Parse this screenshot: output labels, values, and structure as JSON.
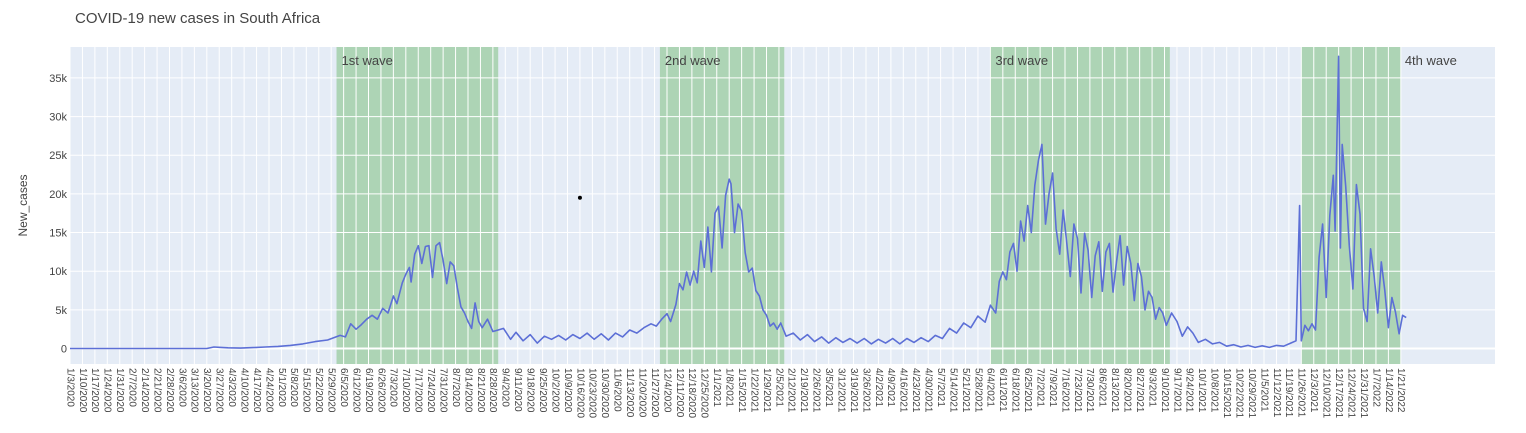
{
  "chart_data": {
    "type": "line",
    "title": "COVID-19 new cases in South Africa",
    "xlabel": "",
    "ylabel": "New_cases",
    "ylim": [
      -2000,
      39000
    ],
    "xlim": [
      "2020-01-03",
      "2022-03-15"
    ],
    "grid": true,
    "y_ticks": [
      {
        "value": 0,
        "label": "0"
      },
      {
        "value": 5000,
        "label": "5k"
      },
      {
        "value": 10000,
        "label": "10k"
      },
      {
        "value": 15000,
        "label": "15k"
      },
      {
        "value": 20000,
        "label": "20k"
      },
      {
        "value": 25000,
        "label": "25k"
      },
      {
        "value": 30000,
        "label": "30k"
      },
      {
        "value": 35000,
        "label": "35k"
      }
    ],
    "x_tick_first": "2020-01-03",
    "x_tick_last": "2022-01-21",
    "x_tick_step_days": 7,
    "x_tick_label_format": "M/D/YYYY",
    "colors": {
      "line": "#5c6fd6",
      "plot_bg": "#e5ecf6",
      "wave_fill": "#7fc17f",
      "grid": "#ffffff"
    },
    "waves": [
      {
        "label": "1st wave",
        "start": "2020-06-01",
        "end": "2020-08-31"
      },
      {
        "label": "2nd wave",
        "start": "2020-11-30",
        "end": "2021-02-08"
      },
      {
        "label": "3rd wave",
        "start": "2021-06-04",
        "end": "2021-09-13"
      },
      {
        "label": "4th wave",
        "start": "2021-11-26",
        "end": "2022-01-21"
      }
    ],
    "annotations": [
      {
        "type": "dot",
        "x": "2020-10-16",
        "y": 19500
      }
    ],
    "series": [
      {
        "points": [
          [
            "2020-01-03",
            0
          ],
          [
            "2020-03-01",
            0
          ],
          [
            "2020-03-20",
            0
          ],
          [
            "2020-03-24",
            200
          ],
          [
            "2020-03-28",
            150
          ],
          [
            "2020-04-01",
            100
          ],
          [
            "2020-04-08",
            60
          ],
          [
            "2020-04-15",
            120
          ],
          [
            "2020-04-22",
            200
          ],
          [
            "2020-04-29",
            280
          ],
          [
            "2020-05-06",
            400
          ],
          [
            "2020-05-13",
            600
          ],
          [
            "2020-05-20",
            900
          ],
          [
            "2020-05-27",
            1100
          ],
          [
            "2020-06-03",
            1700
          ],
          [
            "2020-06-06",
            1500
          ],
          [
            "2020-06-09",
            3200
          ],
          [
            "2020-06-12",
            2500
          ],
          [
            "2020-06-15",
            3100
          ],
          [
            "2020-06-18",
            3800
          ],
          [
            "2020-06-21",
            4300
          ],
          [
            "2020-06-24",
            3800
          ],
          [
            "2020-06-27",
            5200
          ],
          [
            "2020-06-30",
            4600
          ],
          [
            "2020-07-03",
            6800
          ],
          [
            "2020-07-05",
            5800
          ],
          [
            "2020-07-08",
            8500
          ],
          [
            "2020-07-10",
            9600
          ],
          [
            "2020-07-12",
            10500
          ],
          [
            "2020-07-13",
            8600
          ],
          [
            "2020-07-15",
            12200
          ],
          [
            "2020-07-17",
            13300
          ],
          [
            "2020-07-19",
            11000
          ],
          [
            "2020-07-21",
            13200
          ],
          [
            "2020-07-23",
            13300
          ],
          [
            "2020-07-25",
            9200
          ],
          [
            "2020-07-27",
            13300
          ],
          [
            "2020-07-29",
            13700
          ],
          [
            "2020-07-31",
            11400
          ],
          [
            "2020-08-02",
            8400
          ],
          [
            "2020-08-04",
            11200
          ],
          [
            "2020-08-06",
            10700
          ],
          [
            "2020-08-08",
            7900
          ],
          [
            "2020-08-10",
            5400
          ],
          [
            "2020-08-12",
            4600
          ],
          [
            "2020-08-14",
            3500
          ],
          [
            "2020-08-16",
            2600
          ],
          [
            "2020-08-18",
            5900
          ],
          [
            "2020-08-20",
            3500
          ],
          [
            "2020-08-22",
            2700
          ],
          [
            "2020-08-25",
            3800
          ],
          [
            "2020-08-28",
            2200
          ],
          [
            "2020-08-31",
            2400
          ],
          [
            "2020-09-03",
            2600
          ],
          [
            "2020-09-07",
            1200
          ],
          [
            "2020-09-10",
            2100
          ],
          [
            "2020-09-14",
            1000
          ],
          [
            "2020-09-18",
            1800
          ],
          [
            "2020-09-22",
            700
          ],
          [
            "2020-09-26",
            1600
          ],
          [
            "2020-09-30",
            1200
          ],
          [
            "2020-10-04",
            1700
          ],
          [
            "2020-10-08",
            1100
          ],
          [
            "2020-10-12",
            1800
          ],
          [
            "2020-10-16",
            1300
          ],
          [
            "2020-10-20",
            2000
          ],
          [
            "2020-10-24",
            1200
          ],
          [
            "2020-10-28",
            1900
          ],
          [
            "2020-11-01",
            1100
          ],
          [
            "2020-11-05",
            2000
          ],
          [
            "2020-11-09",
            1500
          ],
          [
            "2020-11-13",
            2400
          ],
          [
            "2020-11-17",
            2000
          ],
          [
            "2020-11-21",
            2700
          ],
          [
            "2020-11-25",
            3200
          ],
          [
            "2020-11-28",
            2900
          ],
          [
            "2020-12-01",
            3800
          ],
          [
            "2020-12-04",
            4500
          ],
          [
            "2020-12-06",
            3500
          ],
          [
            "2020-12-09",
            5700
          ],
          [
            "2020-12-11",
            8400
          ],
          [
            "2020-12-13",
            7600
          ],
          [
            "2020-12-15",
            9900
          ],
          [
            "2020-12-17",
            8200
          ],
          [
            "2020-12-19",
            10000
          ],
          [
            "2020-12-21",
            8500
          ],
          [
            "2020-12-23",
            13900
          ],
          [
            "2020-12-25",
            10500
          ],
          [
            "2020-12-27",
            15700
          ],
          [
            "2020-12-29",
            9900
          ],
          [
            "2020-12-31",
            17500
          ],
          [
            "2021-01-02",
            18400
          ],
          [
            "2021-01-04",
            13000
          ],
          [
            "2021-01-06",
            19800
          ],
          [
            "2021-01-08",
            21900
          ],
          [
            "2021-01-09",
            21300
          ],
          [
            "2021-01-11",
            15000
          ],
          [
            "2021-01-13",
            18700
          ],
          [
            "2021-01-15",
            17800
          ],
          [
            "2021-01-17",
            12400
          ],
          [
            "2021-01-19",
            9900
          ],
          [
            "2021-01-21",
            10400
          ],
          [
            "2021-01-23",
            7500
          ],
          [
            "2021-01-25",
            6800
          ],
          [
            "2021-01-27",
            5000
          ],
          [
            "2021-01-29",
            4300
          ],
          [
            "2021-01-31",
            2900
          ],
          [
            "2021-02-02",
            3300
          ],
          [
            "2021-02-04",
            2500
          ],
          [
            "2021-02-06",
            3300
          ],
          [
            "2021-02-09",
            1600
          ],
          [
            "2021-02-13",
            2000
          ],
          [
            "2021-02-17",
            1100
          ],
          [
            "2021-02-21",
            1800
          ],
          [
            "2021-02-25",
            900
          ],
          [
            "2021-03-01",
            1500
          ],
          [
            "2021-03-05",
            700
          ],
          [
            "2021-03-09",
            1400
          ],
          [
            "2021-03-13",
            800
          ],
          [
            "2021-03-17",
            1300
          ],
          [
            "2021-03-21",
            700
          ],
          [
            "2021-03-25",
            1300
          ],
          [
            "2021-03-29",
            600
          ],
          [
            "2021-04-02",
            1200
          ],
          [
            "2021-04-06",
            700
          ],
          [
            "2021-04-10",
            1300
          ],
          [
            "2021-04-14",
            600
          ],
          [
            "2021-04-18",
            1300
          ],
          [
            "2021-04-22",
            800
          ],
          [
            "2021-04-26",
            1400
          ],
          [
            "2021-04-30",
            900
          ],
          [
            "2021-05-04",
            1700
          ],
          [
            "2021-05-08",
            1300
          ],
          [
            "2021-05-12",
            2600
          ],
          [
            "2021-05-16",
            2000
          ],
          [
            "2021-05-20",
            3300
          ],
          [
            "2021-05-24",
            2700
          ],
          [
            "2021-05-28",
            4200
          ],
          [
            "2021-06-01",
            3400
          ],
          [
            "2021-06-04",
            5600
          ],
          [
            "2021-06-07",
            4600
          ],
          [
            "2021-06-09",
            8700
          ],
          [
            "2021-06-11",
            9900
          ],
          [
            "2021-06-13",
            8900
          ],
          [
            "2021-06-15",
            12500
          ],
          [
            "2021-06-17",
            13600
          ],
          [
            "2021-06-19",
            10000
          ],
          [
            "2021-06-21",
            16500
          ],
          [
            "2021-06-23",
            13900
          ],
          [
            "2021-06-25",
            18500
          ],
          [
            "2021-06-27",
            15000
          ],
          [
            "2021-06-29",
            21100
          ],
          [
            "2021-07-01",
            24300
          ],
          [
            "2021-07-03",
            26400
          ],
          [
            "2021-07-05",
            16100
          ],
          [
            "2021-07-07",
            20000
          ],
          [
            "2021-07-09",
            22700
          ],
          [
            "2021-07-11",
            15500
          ],
          [
            "2021-07-13",
            12200
          ],
          [
            "2021-07-15",
            17900
          ],
          [
            "2021-07-17",
            13600
          ],
          [
            "2021-07-19",
            9300
          ],
          [
            "2021-07-21",
            16100
          ],
          [
            "2021-07-23",
            14200
          ],
          [
            "2021-07-25",
            7200
          ],
          [
            "2021-07-27",
            14900
          ],
          [
            "2021-07-29",
            12700
          ],
          [
            "2021-07-31",
            6600
          ],
          [
            "2021-08-02",
            12000
          ],
          [
            "2021-08-04",
            13800
          ],
          [
            "2021-08-06",
            7400
          ],
          [
            "2021-08-08",
            12500
          ],
          [
            "2021-08-10",
            13600
          ],
          [
            "2021-08-12",
            7300
          ],
          [
            "2021-08-14",
            11200
          ],
          [
            "2021-08-16",
            14600
          ],
          [
            "2021-08-18",
            8200
          ],
          [
            "2021-08-20",
            13200
          ],
          [
            "2021-08-22",
            11000
          ],
          [
            "2021-08-24",
            6200
          ],
          [
            "2021-08-26",
            11000
          ],
          [
            "2021-08-28",
            9300
          ],
          [
            "2021-08-30",
            5000
          ],
          [
            "2021-09-01",
            7400
          ],
          [
            "2021-09-03",
            6600
          ],
          [
            "2021-09-05",
            3800
          ],
          [
            "2021-09-07",
            5300
          ],
          [
            "2021-09-09",
            4600
          ],
          [
            "2021-09-11",
            3000
          ],
          [
            "2021-09-14",
            4600
          ],
          [
            "2021-09-17",
            3500
          ],
          [
            "2021-09-20",
            1600
          ],
          [
            "2021-09-23",
            2800
          ],
          [
            "2021-09-26",
            2000
          ],
          [
            "2021-09-29",
            800
          ],
          [
            "2021-10-03",
            1200
          ],
          [
            "2021-10-07",
            600
          ],
          [
            "2021-10-11",
            800
          ],
          [
            "2021-10-15",
            300
          ],
          [
            "2021-10-19",
            500
          ],
          [
            "2021-10-23",
            200
          ],
          [
            "2021-10-27",
            400
          ],
          [
            "2021-10-31",
            150
          ],
          [
            "2021-11-04",
            350
          ],
          [
            "2021-11-08",
            150
          ],
          [
            "2021-11-12",
            400
          ],
          [
            "2021-11-16",
            300
          ],
          [
            "2021-11-20",
            700
          ],
          [
            "2021-11-23",
            1000
          ],
          [
            "2021-11-25",
            18500
          ],
          [
            "2021-11-26",
            1000
          ],
          [
            "2021-11-28",
            3000
          ],
          [
            "2021-11-30",
            2300
          ],
          [
            "2021-12-02",
            3200
          ],
          [
            "2021-12-04",
            2400
          ],
          [
            "2021-12-06",
            11800
          ],
          [
            "2021-12-08",
            16100
          ],
          [
            "2021-12-10",
            6600
          ],
          [
            "2021-12-12",
            17200
          ],
          [
            "2021-12-14",
            22400
          ],
          [
            "2021-12-15",
            15200
          ],
          [
            "2021-12-17",
            37800
          ],
          [
            "2021-12-18",
            13000
          ],
          [
            "2021-12-19",
            26400
          ],
          [
            "2021-12-21",
            21000
          ],
          [
            "2021-12-23",
            13300
          ],
          [
            "2021-12-25",
            7700
          ],
          [
            "2021-12-27",
            21200
          ],
          [
            "2021-12-29",
            17400
          ],
          [
            "2021-12-31",
            5200
          ],
          [
            "2022-01-02",
            3500
          ],
          [
            "2022-01-04",
            12900
          ],
          [
            "2022-01-06",
            9300
          ],
          [
            "2022-01-08",
            4600
          ],
          [
            "2022-01-10",
            11200
          ],
          [
            "2022-01-12",
            7500
          ],
          [
            "2022-01-14",
            2700
          ],
          [
            "2022-01-16",
            6600
          ],
          [
            "2022-01-18",
            4700
          ],
          [
            "2022-01-20",
            1900
          ],
          [
            "2022-01-22",
            4300
          ],
          [
            "2022-01-24",
            4000
          ]
        ]
      }
    ]
  }
}
